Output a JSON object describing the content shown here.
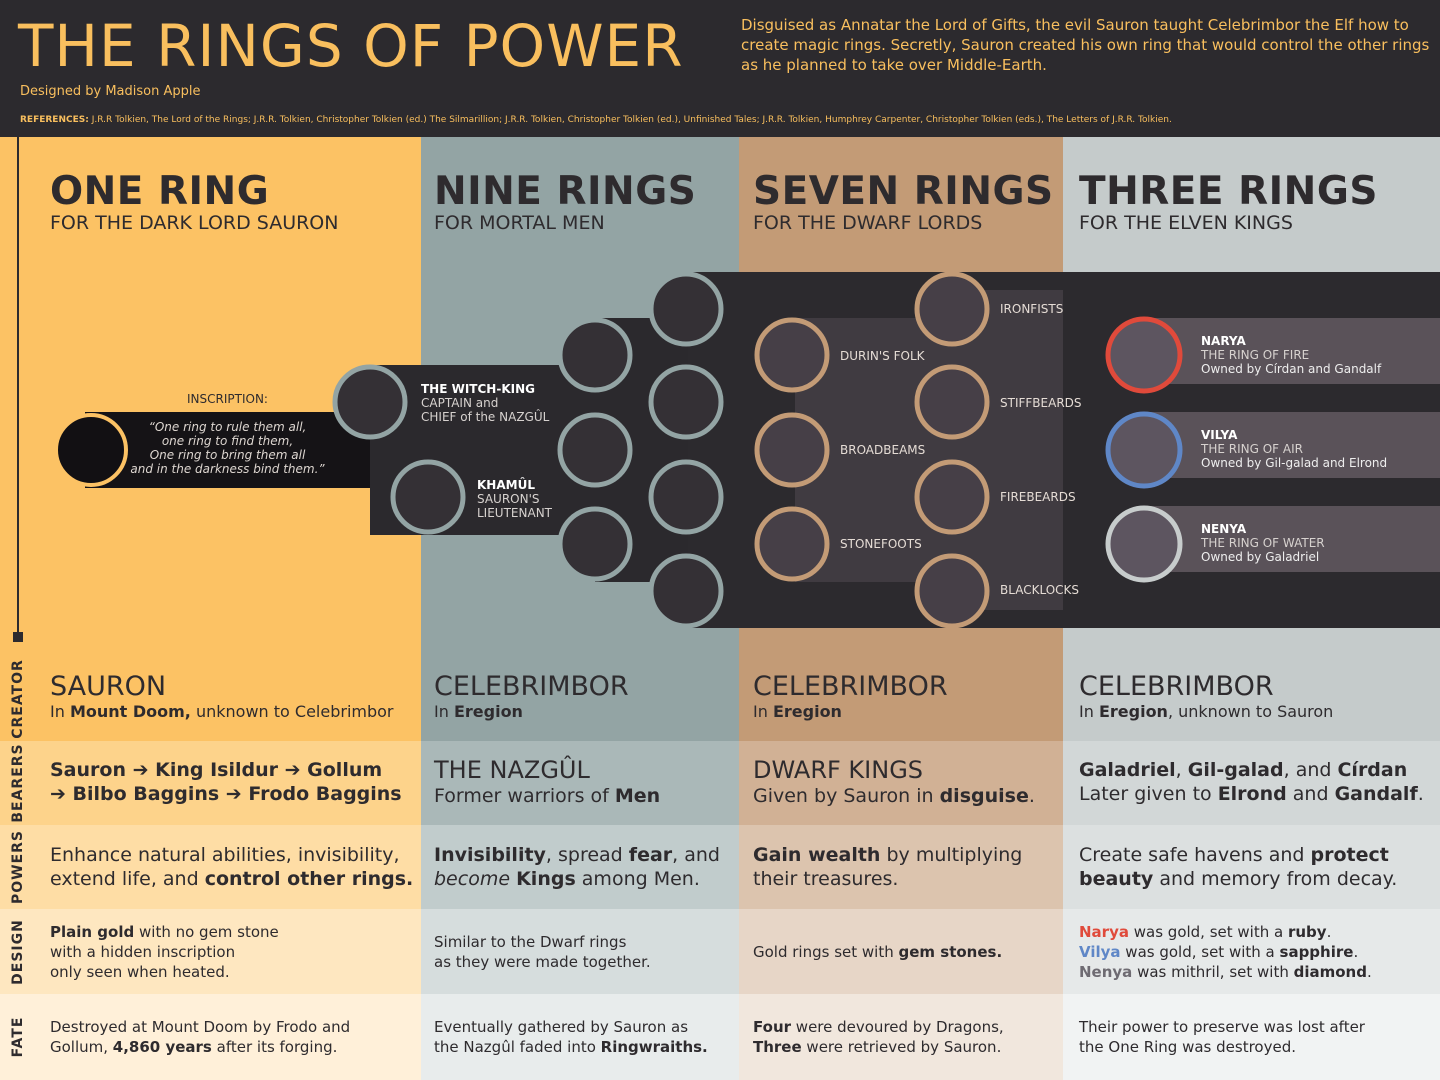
{
  "header": {
    "title": "THE RINGS OF POWER",
    "designer": "Designed by Madison Apple",
    "intro": "Disguised as Annatar the Lord of Gifts, the evil Sauron taught Celebrimbor the Elf how to create magic rings. Secretly, Sauron created his own ring that would control the other rings as he planned to take over Middle-Earth.",
    "references_label": "REFERENCES:",
    "references": "J.R.R Tolkien, The Lord of the Rings; J.R.R. Tolkien, Christopher Tolkien (ed.) The Silmarillion; J.R.R. Tolkien, Christopher Tolkien (ed.), Unfinished Tales; J.R.R. Tolkien, Humphrey Carpenter, Christopher Tolkien (eds.), The Letters of J.R.R. Tolkien."
  },
  "row_labels": [
    "CREATOR",
    "BEARERS",
    "POWERS",
    "DESIGN",
    "FATE"
  ],
  "columns": {
    "one": {
      "title": "ONE RING",
      "subtitle": "FOR THE DARK LORD SAURON"
    },
    "nine": {
      "title": "NINE RINGS",
      "subtitle": "FOR MORTAL MEN"
    },
    "seven": {
      "title": "SEVEN RINGS",
      "subtitle": "FOR THE DWARF LORDS"
    },
    "three": {
      "title": "THREE RINGS",
      "subtitle": "FOR THE ELVEN KINGS"
    }
  },
  "diagram": {
    "inscription_label": "INSCRIPTION:",
    "inscription_lines": [
      "“One ring to rule them all,",
      "one ring to find them,",
      "One ring to bring them all",
      "and in the darkness bind them.”"
    ],
    "witch_king": {
      "name": "THE WITCH-KING",
      "line1": "CAPTAIN and",
      "line2": "CHIEF of the NAZGÛL"
    },
    "khamul": {
      "name": "KHAMÛL",
      "line1": "SAURON'S",
      "line2": "LIEUTENANT"
    },
    "dwarf_houses": [
      "IRONFISTS",
      "DURIN'S FOLK",
      "STIFFBEARDS",
      "BROADBEAMS",
      "FIREBEARDS",
      "STONEFOOTS",
      "BLACKLOCKS"
    ],
    "elven_rings": [
      {
        "name": "NARYA",
        "title": "THE RING OF FIRE",
        "owner": "Owned by Círdan and Gandalf",
        "color": "#e04a3b"
      },
      {
        "name": "VILYA",
        "title": "THE RING OF AIR",
        "owner": "Owned by Gil-galad and Elrond",
        "color": "#5f87c7"
      },
      {
        "name": "NENYA",
        "title": "THE RING OF WATER",
        "owner": "Owned by Galadriel",
        "color": "#c7cccc"
      }
    ],
    "colors": {
      "one_ring": "#fcc264",
      "nine_rings": "#93a4a4",
      "seven_rings": "#c39b76",
      "dark": "#2c2a2e"
    }
  },
  "creator": {
    "one": {
      "name": "SAURON",
      "pre": "In ",
      "place": "Mount Doom,",
      "post": " unknown to Celebrimbor"
    },
    "nine": {
      "name": "CELEBRIMBOR",
      "pre": "In ",
      "place": "Eregion",
      "post": ""
    },
    "seven": {
      "name": "CELEBRIMBOR",
      "pre": "In ",
      "place": "Eregion",
      "post": ""
    },
    "three": {
      "name": "CELEBRIMBOR",
      "pre": "In ",
      "place": "Eregion",
      "post": ", unknown to Sauron"
    }
  },
  "bearers": {
    "one": {
      "line1": "Sauron ➔ King Isildur ➔ Gollum",
      "line2": "➔ Bilbo Baggins ➔ Frodo Baggins"
    },
    "nine": {
      "title": "THE NAZGÛL",
      "pre": "Former warriors of ",
      "bold": "Men"
    },
    "seven": {
      "title": "DWARF KINGS",
      "pre": "Given by Sauron in ",
      "bold": "disguise",
      "post": "."
    },
    "three": {
      "b1": "Galadriel",
      "t1": ", ",
      "b2": "Gil-galad",
      "t2": ", and ",
      "b3": "Círdan",
      "l2pre": "Later given to ",
      "b4": "Elrond",
      "l2mid": " and ",
      "b5": "Gandalf",
      "l2post": "."
    }
  },
  "powers": {
    "one": {
      "line1": "Enhance natural abilities, invisibility,",
      "pre2": "extend life, and ",
      "bold2": "control other rings."
    },
    "nine": {
      "b1": "Invisibility",
      "t1": ", spread ",
      "b2": "fear",
      "t2": ", and",
      "i3": "become",
      "t3": " ",
      "b3": "Kings",
      "t4": " among Men."
    },
    "seven": {
      "b1": "Gain wealth",
      "t1": " by multiplying",
      "line2": "their treasures."
    },
    "three": {
      "t1": "Create safe havens and ",
      "b1": "protect",
      "b2": "beauty",
      "t2": " and memory from decay."
    }
  },
  "design": {
    "one": {
      "b1": "Plain gold",
      "t1": " with no gem stone",
      "line2": "with a hidden inscription",
      "line3": "only seen when heated."
    },
    "nine": {
      "line1": "Similar to the Dwarf rings",
      "line2": "as they were made together."
    },
    "seven": {
      "pre": "Gold rings set with ",
      "bold": "gem stones."
    },
    "three": {
      "narya": "Narya",
      "narya_t": " was gold, set with a ",
      "narya_b": "ruby",
      "narya_p": ".",
      "vilya": "Vilya",
      "vilya_t": " was gold, set with a ",
      "vilya_b": "sapphire",
      "vilya_p": ".",
      "nenya": "Nenya",
      "nenya_t": " was mithril, set with ",
      "nenya_b": "diamond",
      "nenya_p": "."
    }
  },
  "fate": {
    "one": {
      "line1": "Destroyed at Mount Doom by Frodo and",
      "pre2": "Gollum, ",
      "bold2": "4,860 years",
      "post2": " after its forging."
    },
    "nine": {
      "line1": "Eventually gathered by Sauron as",
      "pre2": "the Nazgûl faded into ",
      "bold2": "Ringwraiths."
    },
    "seven": {
      "b1": "Four",
      "t1": " were devoured by Dragons,",
      "b2": "Three",
      "t2": " were retrieved by Sauron."
    },
    "three": {
      "line1": "Their power to preserve was lost after",
      "line2": "the One Ring was destroyed."
    }
  }
}
